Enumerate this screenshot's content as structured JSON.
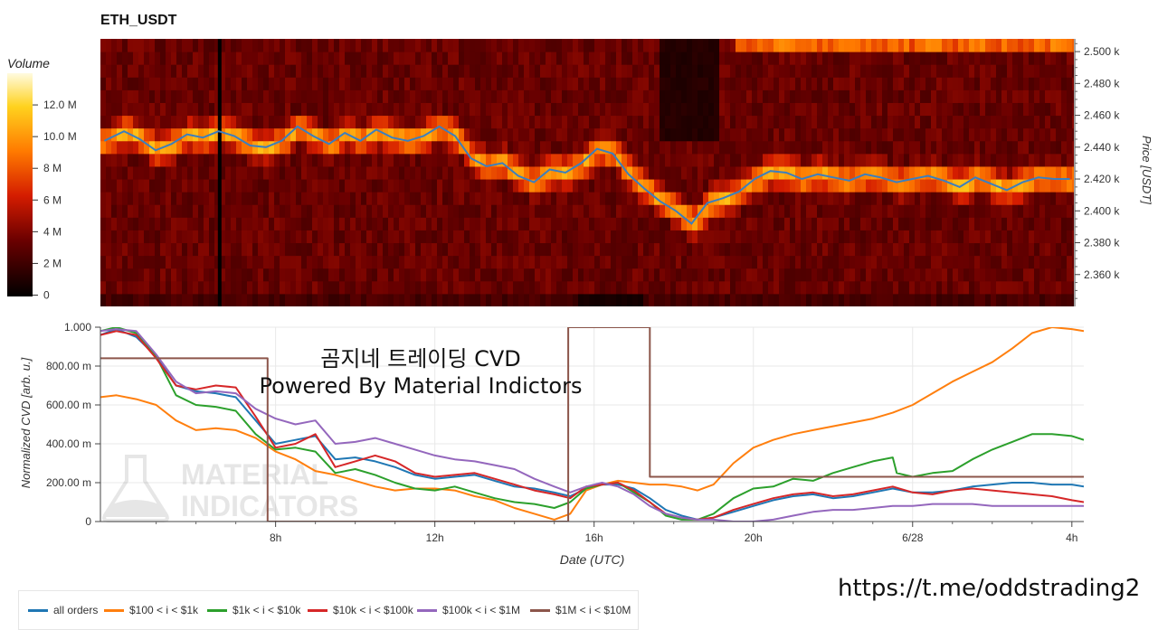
{
  "chart_title": "ETH_USDT",
  "overlay_text": {
    "line1": "곰지네 트레이딩 CVD",
    "line2": "Powered By Material Indictors"
  },
  "link": "https://t.me/oddstrading2",
  "watermark": {
    "line1": "MATERIAL",
    "line2": "INDICATORS"
  },
  "colors": {
    "all_orders": "#1f77b4",
    "b100_1k": "#ff7f0e",
    "b1k_10k": "#2ca02c",
    "b10k_100k": "#d62728",
    "b100k_1m": "#9467bd",
    "b1m_10m": "#8c564b",
    "price_line": "#3b7fbf"
  },
  "chart_data": [
    {
      "type": "heatmap",
      "title": "ETH_USDT",
      "colorbar": {
        "label": "Volume",
        "range": [
          0,
          14000000
        ],
        "ticks": [
          "0",
          "2 M",
          "4 M",
          "6 M",
          "8 M",
          "10.0 M",
          "12.0 M"
        ]
      },
      "y_axis": {
        "label": "Price [USDT]",
        "range": [
          2340,
          2508
        ],
        "ticks": [
          "2.360 k",
          "2.380 k",
          "2.400 k",
          "2.420 k",
          "2.440 k",
          "2.460 k",
          "2.480 k",
          "2.500 k"
        ]
      },
      "price_series": {
        "name": "price",
        "x_hours": [
          3.7,
          4.2,
          4.6,
          5.0,
          5.4,
          5.8,
          6.2,
          6.6,
          7.0,
          7.4,
          7.8,
          8.2,
          8.6,
          9.0,
          9.4,
          9.8,
          10.2,
          10.6,
          11.0,
          11.4,
          11.8,
          12.2,
          12.6,
          13.0,
          13.4,
          13.8,
          14.2,
          14.6,
          15.0,
          15.4,
          15.8,
          16.2,
          16.6,
          17.0,
          17.4,
          17.8,
          18.2,
          18.6,
          19.0,
          19.4,
          19.8,
          20.2,
          20.6,
          21.0,
          21.4,
          21.8,
          22.2,
          22.6,
          23.0,
          23.4,
          23.8,
          24.2,
          24.6,
          25.0,
          25.4,
          25.8,
          26.2,
          26.6,
          27.0,
          27.4,
          27.8,
          28.2
        ],
        "values": [
          2444,
          2450,
          2445,
          2438,
          2442,
          2448,
          2446,
          2450,
          2447,
          2441,
          2440,
          2444,
          2453,
          2447,
          2442,
          2449,
          2444,
          2451,
          2446,
          2444,
          2447,
          2453,
          2447,
          2433,
          2428,
          2430,
          2422,
          2418,
          2426,
          2424,
          2430,
          2439,
          2436,
          2423,
          2414,
          2406,
          2400,
          2392,
          2405,
          2408,
          2412,
          2420,
          2425,
          2424,
          2420,
          2423,
          2421,
          2419,
          2423,
          2421,
          2418,
          2420,
          2422,
          2419,
          2415,
          2421,
          2417,
          2413,
          2418,
          2421,
          2420,
          2420
        ]
      },
      "x_range_hours": [
        3.6,
        28.3
      ]
    },
    {
      "type": "line",
      "title": "",
      "xlabel": "Date (UTC)",
      "ylabel": "Normalized CVD [arb. u.]",
      "ylim": [
        0,
        1.0
      ],
      "y_ticks": [
        "0",
        "200.00 m",
        "400.00 m",
        "600.00 m",
        "800.00 m",
        "1.000"
      ],
      "x_ticks": [
        {
          "hour": 8,
          "label": "8h"
        },
        {
          "hour": 12,
          "label": "12h"
        },
        {
          "hour": 16,
          "label": "16h"
        },
        {
          "hour": 20,
          "label": "20h"
        },
        {
          "hour": 24,
          "label": "6/28"
        },
        {
          "hour": 28,
          "label": "4h"
        }
      ],
      "x_range_hours": [
        3.6,
        28.3
      ],
      "series": [
        {
          "name": "all orders",
          "color": "#1f77b4",
          "x": [
            3.6,
            4.0,
            4.5,
            5.0,
            5.5,
            6.0,
            6.5,
            7.0,
            7.5,
            8.0,
            8.5,
            9.0,
            9.5,
            10.0,
            10.5,
            11.0,
            11.5,
            12.0,
            12.5,
            13.0,
            13.5,
            14.0,
            14.5,
            15.0,
            15.4,
            15.8,
            16.2,
            16.6,
            17.0,
            17.4,
            17.8,
            18.2,
            18.6,
            19.0,
            19.5,
            20.0,
            20.5,
            21.0,
            21.5,
            22.0,
            22.5,
            23.0,
            23.5,
            24.0,
            24.5,
            25.0,
            25.5,
            26.0,
            26.5,
            27.0,
            27.5,
            28.0,
            28.3
          ],
          "values": [
            0.96,
            0.99,
            0.95,
            0.85,
            0.7,
            0.67,
            0.66,
            0.64,
            0.52,
            0.4,
            0.42,
            0.44,
            0.32,
            0.33,
            0.31,
            0.28,
            0.24,
            0.22,
            0.23,
            0.24,
            0.21,
            0.18,
            0.17,
            0.15,
            0.13,
            0.17,
            0.19,
            0.19,
            0.17,
            0.12,
            0.06,
            0.03,
            0.01,
            0.02,
            0.05,
            0.08,
            0.11,
            0.13,
            0.14,
            0.12,
            0.13,
            0.15,
            0.17,
            0.15,
            0.15,
            0.16,
            0.18,
            0.19,
            0.2,
            0.2,
            0.19,
            0.19,
            0.18
          ]
        },
        {
          "name": "$100 < i < $1k",
          "color": "#ff7f0e",
          "x": [
            3.6,
            4.0,
            4.5,
            5.0,
            5.5,
            6.0,
            6.5,
            7.0,
            7.5,
            8.0,
            8.5,
            9.0,
            9.5,
            10.0,
            10.5,
            11.0,
            11.5,
            12.0,
            12.5,
            13.0,
            13.5,
            14.0,
            14.5,
            15.0,
            15.4,
            15.8,
            16.2,
            16.6,
            17.0,
            17.4,
            17.8,
            18.2,
            18.6,
            19.0,
            19.5,
            20.0,
            20.5,
            21.0,
            21.5,
            22.0,
            22.5,
            23.0,
            23.5,
            24.0,
            24.5,
            25.0,
            25.5,
            26.0,
            26.5,
            27.0,
            27.5,
            28.0,
            28.3
          ],
          "values": [
            0.64,
            0.65,
            0.63,
            0.6,
            0.52,
            0.47,
            0.48,
            0.47,
            0.43,
            0.36,
            0.32,
            0.26,
            0.24,
            0.21,
            0.18,
            0.16,
            0.17,
            0.17,
            0.16,
            0.13,
            0.11,
            0.07,
            0.04,
            0.01,
            0.04,
            0.16,
            0.19,
            0.21,
            0.2,
            0.19,
            0.19,
            0.18,
            0.16,
            0.19,
            0.3,
            0.38,
            0.42,
            0.45,
            0.47,
            0.49,
            0.51,
            0.53,
            0.56,
            0.6,
            0.66,
            0.72,
            0.77,
            0.82,
            0.89,
            0.97,
            1.0,
            0.99,
            0.98
          ]
        },
        {
          "name": "$1k < i < $10k",
          "color": "#2ca02c",
          "x": [
            3.6,
            4.0,
            4.5,
            5.0,
            5.5,
            6.0,
            6.5,
            7.0,
            7.5,
            8.0,
            8.5,
            9.0,
            9.5,
            10.0,
            10.5,
            11.0,
            11.5,
            12.0,
            12.5,
            13.0,
            13.5,
            14.0,
            14.5,
            15.0,
            15.4,
            15.8,
            16.2,
            16.6,
            17.0,
            17.4,
            17.8,
            18.2,
            18.6,
            19.0,
            19.5,
            20.0,
            20.5,
            21.0,
            21.5,
            22.0,
            22.5,
            23.0,
            23.5,
            23.6,
            24.0,
            24.5,
            25.0,
            25.5,
            26.0,
            26.5,
            27.0,
            27.5,
            28.0,
            28.3
          ],
          "values": [
            0.98,
            1.0,
            0.97,
            0.85,
            0.65,
            0.6,
            0.59,
            0.57,
            0.45,
            0.37,
            0.38,
            0.36,
            0.25,
            0.27,
            0.24,
            0.2,
            0.17,
            0.16,
            0.18,
            0.15,
            0.12,
            0.1,
            0.09,
            0.07,
            0.1,
            0.17,
            0.19,
            0.2,
            0.15,
            0.1,
            0.03,
            0.01,
            0.01,
            0.04,
            0.12,
            0.17,
            0.18,
            0.22,
            0.21,
            0.25,
            0.28,
            0.31,
            0.33,
            0.25,
            0.23,
            0.25,
            0.26,
            0.32,
            0.37,
            0.41,
            0.45,
            0.45,
            0.44,
            0.42
          ]
        },
        {
          "name": "$10k < i < $100k",
          "color": "#d62728",
          "x": [
            3.6,
            4.0,
            4.5,
            5.0,
            5.5,
            6.0,
            6.5,
            7.0,
            7.5,
            8.0,
            8.5,
            9.0,
            9.5,
            10.0,
            10.5,
            11.0,
            11.5,
            12.0,
            12.5,
            13.0,
            13.5,
            14.0,
            14.5,
            15.0,
            15.4,
            15.8,
            16.2,
            16.6,
            17.0,
            17.4,
            17.8,
            18.2,
            18.6,
            19.0,
            19.5,
            20.0,
            20.5,
            21.0,
            21.5,
            22.0,
            22.5,
            23.0,
            23.5,
            24.0,
            24.5,
            25.0,
            25.5,
            26.0,
            26.5,
            27.0,
            27.5,
            28.0,
            28.3
          ],
          "values": [
            0.96,
            0.98,
            0.96,
            0.84,
            0.7,
            0.68,
            0.7,
            0.69,
            0.54,
            0.38,
            0.4,
            0.45,
            0.28,
            0.31,
            0.34,
            0.31,
            0.25,
            0.23,
            0.24,
            0.25,
            0.22,
            0.19,
            0.16,
            0.14,
            0.12,
            0.18,
            0.19,
            0.2,
            0.16,
            0.1,
            0.04,
            0.02,
            0.01,
            0.02,
            0.06,
            0.09,
            0.12,
            0.14,
            0.15,
            0.13,
            0.14,
            0.16,
            0.18,
            0.15,
            0.14,
            0.16,
            0.17,
            0.16,
            0.15,
            0.14,
            0.13,
            0.11,
            0.1
          ]
        },
        {
          "name": "$100k < i < $1M",
          "color": "#9467bd",
          "x": [
            3.6,
            4.0,
            4.5,
            5.0,
            5.5,
            6.0,
            6.5,
            7.0,
            7.5,
            8.0,
            8.5,
            9.0,
            9.5,
            10.0,
            10.5,
            11.0,
            11.5,
            12.0,
            12.5,
            13.0,
            13.5,
            14.0,
            14.5,
            15.0,
            15.4,
            15.8,
            16.2,
            16.6,
            17.0,
            17.4,
            17.8,
            18.2,
            18.6,
            19.0,
            19.5,
            20.0,
            20.5,
            21.0,
            21.5,
            22.0,
            22.5,
            23.0,
            23.5,
            24.0,
            24.5,
            25.0,
            25.5,
            26.0,
            26.5,
            27.0,
            27.5,
            28.0,
            28.3
          ],
          "values": [
            0.98,
            0.99,
            0.98,
            0.86,
            0.72,
            0.66,
            0.67,
            0.66,
            0.58,
            0.53,
            0.5,
            0.52,
            0.4,
            0.41,
            0.43,
            0.4,
            0.37,
            0.34,
            0.32,
            0.31,
            0.29,
            0.27,
            0.22,
            0.18,
            0.15,
            0.18,
            0.2,
            0.18,
            0.14,
            0.08,
            0.04,
            0.02,
            0.01,
            0.01,
            0.0,
            0.0,
            0.01,
            0.03,
            0.05,
            0.06,
            0.06,
            0.07,
            0.08,
            0.08,
            0.09,
            0.09,
            0.09,
            0.08,
            0.08,
            0.08,
            0.08,
            0.08,
            0.08
          ]
        },
        {
          "name": "$1M < i < $10M",
          "color": "#8c564b",
          "x": [
            3.6,
            7.8,
            7.8,
            15.35,
            15.35,
            17.4,
            17.4,
            28.3
          ],
          "values": [
            0.84,
            0.84,
            0.0,
            0.0,
            1.0,
            1.0,
            0.23,
            0.23
          ]
        }
      ],
      "legend_position": "bottom-left"
    }
  ]
}
